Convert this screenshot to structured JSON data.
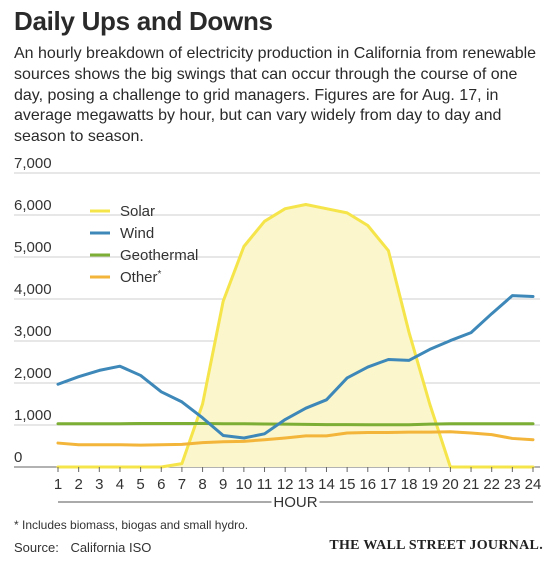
{
  "header": {
    "title": "Daily Ups and Downs",
    "subtitle": "An hourly breakdown of electricity production in California from renewable sources shows the big swings that can occur through the course of one day, posing a challenge to grid managers. Figures are for Aug. 17, in average megawatts by hour, but can vary widely from day to day and season to season."
  },
  "chart_data": {
    "type": "line",
    "title": "Daily Ups and Downs",
    "xlabel": "HOUR",
    "ylabel": "",
    "x": [
      1,
      2,
      3,
      4,
      5,
      6,
      7,
      8,
      9,
      10,
      11,
      12,
      13,
      14,
      15,
      16,
      17,
      18,
      19,
      20,
      21,
      22,
      23,
      24
    ],
    "xlim": [
      1,
      24
    ],
    "ylim": [
      0,
      7000
    ],
    "y_ticks": [
      0,
      1000,
      2000,
      3000,
      4000,
      5000,
      6000,
      7000
    ],
    "y_tick_labels": [
      "0",
      "1,000",
      "2,000",
      "3,000",
      "4,000",
      "5,000",
      "6,000",
      "7,000"
    ],
    "grid": "horizontal",
    "legend_position": "top-left",
    "series": [
      {
        "name": "Solar",
        "color": "#f5e44a",
        "fill": "#fbf6cc",
        "area": true,
        "values": [
          0,
          0,
          0,
          0,
          0,
          0,
          80,
          1500,
          3950,
          5250,
          5850,
          6150,
          6250,
          6150,
          6050,
          5750,
          5150,
          3200,
          1500,
          0,
          0,
          0,
          0,
          0
        ]
      },
      {
        "name": "Wind",
        "color": "#3d88b8",
        "values": [
          1970,
          2150,
          2300,
          2400,
          2180,
          1790,
          1550,
          1170,
          750,
          690,
          790,
          1130,
          1400,
          1600,
          2120,
          2380,
          2560,
          2540,
          2800,
          3010,
          3200,
          3650,
          4080,
          4060
        ]
      },
      {
        "name": "Geothermal",
        "color": "#7cad34",
        "values": [
          1030,
          1030,
          1030,
          1030,
          1035,
          1035,
          1035,
          1035,
          1030,
          1030,
          1025,
          1020,
          1015,
          1010,
          1010,
          1005,
          1005,
          1005,
          1020,
          1030,
          1030,
          1030,
          1030,
          1030
        ]
      },
      {
        "name": "Other",
        "legend_suffix": "*",
        "color": "#f3b53a",
        "values": [
          570,
          530,
          530,
          530,
          520,
          530,
          540,
          580,
          600,
          610,
          650,
          690,
          740,
          740,
          810,
          820,
          820,
          830,
          830,
          840,
          810,
          770,
          680,
          650
        ]
      }
    ],
    "footnote": "* Includes biomass, biogas and small hydro."
  },
  "footer": {
    "source_label": "Source:",
    "source_value": "California ISO",
    "brand": "THE WALL STREET JOURNAL."
  }
}
